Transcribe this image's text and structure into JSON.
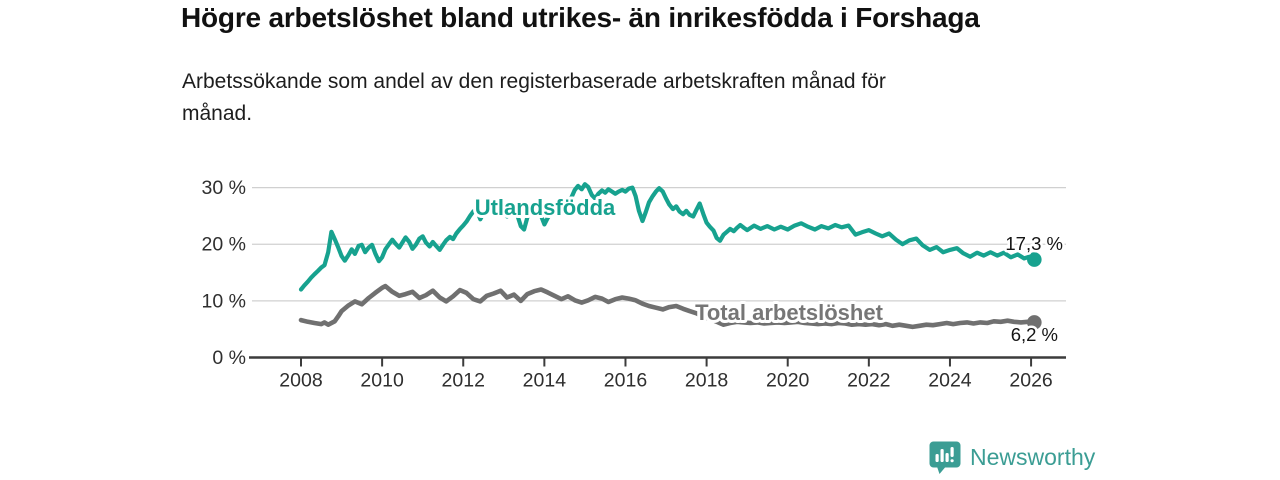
{
  "branding": {
    "wordmark": "Newsworthy",
    "color": "#3B9D94",
    "icon": "newsworthy-chart-bubble-icon"
  },
  "chart_data": {
    "type": "line",
    "title": "Högre arbetslöshet bland utrikes- än inrikesfödda i Forshaga",
    "subtitle": "Arbetssökande som andel av den registerbaserade arbetskraften månad för månad.",
    "subtitle_lines": [
      "Arbetssökande som andel av den registerbaserade arbetskraften månad för",
      "månad."
    ],
    "xlabel": "",
    "ylabel": "",
    "unit": "%",
    "xlim": [
      2007.7,
      2026.9
    ],
    "ylim": [
      0,
      32
    ],
    "grid": true,
    "legend": "inline-labels",
    "x_ticks": [
      {
        "v": 2008,
        "label": "2008"
      },
      {
        "v": 2010,
        "label": "2010"
      },
      {
        "v": 2012,
        "label": "2012"
      },
      {
        "v": 2014,
        "label": "2014"
      },
      {
        "v": 2016,
        "label": "2016"
      },
      {
        "v": 2018,
        "label": "2018"
      },
      {
        "v": 2020,
        "label": "2020"
      },
      {
        "v": 2022,
        "label": "2022"
      },
      {
        "v": 2024,
        "label": "2024"
      },
      {
        "v": 2026,
        "label": "2026"
      }
    ],
    "y_ticks": [
      {
        "v": 0,
        "label": "0 %"
      },
      {
        "v": 10,
        "label": "10 %"
      },
      {
        "v": 20,
        "label": "20 %"
      },
      {
        "v": 30,
        "label": "30 %"
      }
    ],
    "series": [
      {
        "name": "Utlandsfödda",
        "color": "#17A28F",
        "end_label": "17,3 %",
        "last_value": 17.3,
        "points": [
          [
            2008.0,
            12.0
          ],
          [
            2008.08,
            12.7
          ],
          [
            2008.17,
            13.4
          ],
          [
            2008.25,
            14.1
          ],
          [
            2008.33,
            14.7
          ],
          [
            2008.42,
            15.3
          ],
          [
            2008.5,
            15.9
          ],
          [
            2008.58,
            16.3
          ],
          [
            2008.67,
            18.6
          ],
          [
            2008.75,
            22.2
          ],
          [
            2008.83,
            20.9
          ],
          [
            2008.92,
            19.4
          ],
          [
            2009.0,
            17.9
          ],
          [
            2009.08,
            17.1
          ],
          [
            2009.17,
            18.1
          ],
          [
            2009.25,
            19.1
          ],
          [
            2009.33,
            18.3
          ],
          [
            2009.42,
            19.7
          ],
          [
            2009.5,
            19.9
          ],
          [
            2009.58,
            18.6
          ],
          [
            2009.67,
            19.4
          ],
          [
            2009.75,
            19.9
          ],
          [
            2009.83,
            18.4
          ],
          [
            2009.92,
            17.0
          ],
          [
            2010.0,
            17.7
          ],
          [
            2010.08,
            19.1
          ],
          [
            2010.17,
            20.0
          ],
          [
            2010.25,
            20.8
          ],
          [
            2010.33,
            20.1
          ],
          [
            2010.42,
            19.4
          ],
          [
            2010.5,
            20.3
          ],
          [
            2010.58,
            21.2
          ],
          [
            2010.67,
            20.4
          ],
          [
            2010.75,
            19.2
          ],
          [
            2010.83,
            19.9
          ],
          [
            2010.92,
            21.0
          ],
          [
            2011.0,
            21.4
          ],
          [
            2011.08,
            20.3
          ],
          [
            2011.17,
            19.6
          ],
          [
            2011.25,
            20.4
          ],
          [
            2011.33,
            19.7
          ],
          [
            2011.42,
            19.0
          ],
          [
            2011.5,
            19.9
          ],
          [
            2011.58,
            20.7
          ],
          [
            2011.67,
            21.3
          ],
          [
            2011.75,
            20.9
          ],
          [
            2011.83,
            21.9
          ],
          [
            2011.92,
            22.7
          ],
          [
            2012.0,
            23.3
          ],
          [
            2012.08,
            24.0
          ],
          [
            2012.17,
            25.0
          ],
          [
            2012.25,
            25.8
          ],
          [
            2012.33,
            26.1
          ],
          [
            2012.42,
            24.4
          ],
          [
            2012.5,
            25.5
          ],
          [
            2012.58,
            26.3
          ],
          [
            2012.67,
            26.0
          ],
          [
            2012.75,
            25.6
          ],
          [
            2012.83,
            26.2
          ],
          [
            2012.92,
            26.5
          ],
          [
            2013.0,
            25.6
          ],
          [
            2013.08,
            24.9
          ],
          [
            2013.17,
            25.8
          ],
          [
            2013.25,
            26.3
          ],
          [
            2013.33,
            25.2
          ],
          [
            2013.42,
            23.2
          ],
          [
            2013.5,
            22.6
          ],
          [
            2013.58,
            24.7
          ],
          [
            2013.67,
            25.9
          ],
          [
            2013.75,
            26.4
          ],
          [
            2013.83,
            25.8
          ],
          [
            2013.92,
            25.0
          ],
          [
            2014.0,
            23.5
          ],
          [
            2014.08,
            24.6
          ],
          [
            2014.17,
            25.7
          ],
          [
            2014.25,
            26.6
          ],
          [
            2014.33,
            27.0
          ],
          [
            2014.42,
            26.4
          ],
          [
            2014.5,
            26.9
          ],
          [
            2014.58,
            27.5
          ],
          [
            2014.67,
            28.3
          ],
          [
            2014.75,
            29.6
          ],
          [
            2014.83,
            30.3
          ],
          [
            2014.92,
            29.7
          ],
          [
            2015.0,
            30.6
          ],
          [
            2015.08,
            30.1
          ],
          [
            2015.17,
            28.7
          ],
          [
            2015.25,
            28.1
          ],
          [
            2015.33,
            28.9
          ],
          [
            2015.42,
            29.5
          ],
          [
            2015.5,
            29.1
          ],
          [
            2015.58,
            29.7
          ],
          [
            2015.67,
            29.3
          ],
          [
            2015.75,
            28.9
          ],
          [
            2015.83,
            29.3
          ],
          [
            2015.92,
            29.6
          ],
          [
            2016.0,
            29.3
          ],
          [
            2016.08,
            29.8
          ],
          [
            2016.17,
            30.0
          ],
          [
            2016.25,
            28.5
          ],
          [
            2016.33,
            25.9
          ],
          [
            2016.42,
            24.1
          ],
          [
            2016.5,
            25.7
          ],
          [
            2016.58,
            27.4
          ],
          [
            2016.67,
            28.5
          ],
          [
            2016.75,
            29.3
          ],
          [
            2016.83,
            29.9
          ],
          [
            2016.92,
            29.3
          ],
          [
            2017.0,
            28.1
          ],
          [
            2017.08,
            27.0
          ],
          [
            2017.17,
            26.2
          ],
          [
            2017.25,
            26.7
          ],
          [
            2017.33,
            25.8
          ],
          [
            2017.42,
            25.3
          ],
          [
            2017.5,
            25.9
          ],
          [
            2017.58,
            25.2
          ],
          [
            2017.67,
            24.9
          ],
          [
            2017.75,
            26.1
          ],
          [
            2017.83,
            27.2
          ],
          [
            2017.92,
            25.3
          ],
          [
            2018.0,
            23.8
          ],
          [
            2018.08,
            23.1
          ],
          [
            2018.17,
            22.4
          ],
          [
            2018.25,
            21.1
          ],
          [
            2018.33,
            20.6
          ],
          [
            2018.42,
            21.7
          ],
          [
            2018.5,
            22.2
          ],
          [
            2018.58,
            22.7
          ],
          [
            2018.67,
            22.3
          ],
          [
            2018.75,
            22.9
          ],
          [
            2018.83,
            23.4
          ],
          [
            2018.92,
            22.9
          ],
          [
            2019.0,
            22.5
          ],
          [
            2019.17,
            23.3
          ],
          [
            2019.33,
            22.7
          ],
          [
            2019.5,
            23.2
          ],
          [
            2019.67,
            22.6
          ],
          [
            2019.83,
            23.1
          ],
          [
            2020.0,
            22.6
          ],
          [
            2020.17,
            23.3
          ],
          [
            2020.33,
            23.7
          ],
          [
            2020.5,
            23.1
          ],
          [
            2020.67,
            22.6
          ],
          [
            2020.83,
            23.2
          ],
          [
            2021.0,
            22.8
          ],
          [
            2021.17,
            23.4
          ],
          [
            2021.33,
            23.0
          ],
          [
            2021.5,
            23.3
          ],
          [
            2021.67,
            21.7
          ],
          [
            2021.83,
            22.1
          ],
          [
            2022.0,
            22.5
          ],
          [
            2022.17,
            21.9
          ],
          [
            2022.33,
            21.4
          ],
          [
            2022.5,
            21.9
          ],
          [
            2022.67,
            20.8
          ],
          [
            2022.83,
            20.0
          ],
          [
            2023.0,
            20.7
          ],
          [
            2023.17,
            21.0
          ],
          [
            2023.33,
            19.8
          ],
          [
            2023.5,
            19.0
          ],
          [
            2023.67,
            19.5
          ],
          [
            2023.83,
            18.6
          ],
          [
            2024.0,
            19.0
          ],
          [
            2024.17,
            19.3
          ],
          [
            2024.33,
            18.4
          ],
          [
            2024.5,
            17.8
          ],
          [
            2024.67,
            18.5
          ],
          [
            2024.83,
            18.0
          ],
          [
            2025.0,
            18.6
          ],
          [
            2025.17,
            18.0
          ],
          [
            2025.33,
            18.5
          ],
          [
            2025.5,
            17.7
          ],
          [
            2025.67,
            18.2
          ],
          [
            2025.83,
            17.5
          ],
          [
            2026.0,
            17.9
          ],
          [
            2026.08,
            17.3
          ]
        ]
      },
      {
        "name": "Total arbetslöshet",
        "color": "#707070",
        "end_label": "6,2 %",
        "last_value": 6.2,
        "points": [
          [
            2008.0,
            6.6
          ],
          [
            2008.17,
            6.3
          ],
          [
            2008.33,
            6.1
          ],
          [
            2008.5,
            5.9
          ],
          [
            2008.58,
            6.2
          ],
          [
            2008.67,
            5.8
          ],
          [
            2008.83,
            6.4
          ],
          [
            2008.92,
            7.3
          ],
          [
            2009.0,
            8.2
          ],
          [
            2009.17,
            9.2
          ],
          [
            2009.33,
            9.9
          ],
          [
            2009.5,
            9.4
          ],
          [
            2009.67,
            10.5
          ],
          [
            2009.83,
            11.4
          ],
          [
            2010.0,
            12.3
          ],
          [
            2010.08,
            12.6
          ],
          [
            2010.25,
            11.6
          ],
          [
            2010.42,
            10.9
          ],
          [
            2010.58,
            11.2
          ],
          [
            2010.75,
            11.6
          ],
          [
            2010.92,
            10.5
          ],
          [
            2011.08,
            11.0
          ],
          [
            2011.25,
            11.8
          ],
          [
            2011.42,
            10.6
          ],
          [
            2011.58,
            9.9
          ],
          [
            2011.75,
            10.8
          ],
          [
            2011.92,
            11.9
          ],
          [
            2012.08,
            11.4
          ],
          [
            2012.25,
            10.3
          ],
          [
            2012.42,
            9.9
          ],
          [
            2012.58,
            10.9
          ],
          [
            2012.75,
            11.3
          ],
          [
            2012.92,
            11.8
          ],
          [
            2013.08,
            10.6
          ],
          [
            2013.25,
            11.1
          ],
          [
            2013.42,
            10.0
          ],
          [
            2013.58,
            11.2
          ],
          [
            2013.75,
            11.7
          ],
          [
            2013.92,
            12.0
          ],
          [
            2014.08,
            11.5
          ],
          [
            2014.25,
            10.9
          ],
          [
            2014.42,
            10.3
          ],
          [
            2014.58,
            10.8
          ],
          [
            2014.75,
            10.1
          ],
          [
            2014.92,
            9.7
          ],
          [
            2015.08,
            10.1
          ],
          [
            2015.25,
            10.7
          ],
          [
            2015.42,
            10.4
          ],
          [
            2015.58,
            9.8
          ],
          [
            2015.75,
            10.3
          ],
          [
            2015.92,
            10.6
          ],
          [
            2016.08,
            10.4
          ],
          [
            2016.25,
            10.1
          ],
          [
            2016.42,
            9.5
          ],
          [
            2016.58,
            9.1
          ],
          [
            2016.75,
            8.8
          ],
          [
            2016.92,
            8.5
          ],
          [
            2017.08,
            8.9
          ],
          [
            2017.25,
            9.1
          ],
          [
            2017.42,
            8.6
          ],
          [
            2017.58,
            8.2
          ],
          [
            2017.75,
            7.8
          ],
          [
            2017.92,
            7.2
          ],
          [
            2018.08,
            6.8
          ],
          [
            2018.25,
            6.3
          ],
          [
            2018.42,
            5.8
          ],
          [
            2018.58,
            6.1
          ],
          [
            2018.75,
            6.3
          ],
          [
            2018.92,
            6.2
          ],
          [
            2019.08,
            6.1
          ],
          [
            2019.25,
            6.2
          ],
          [
            2019.42,
            6.0
          ],
          [
            2019.58,
            6.1
          ],
          [
            2019.75,
            6.2
          ],
          [
            2019.92,
            6.1
          ],
          [
            2020.08,
            6.2
          ],
          [
            2020.25,
            6.3
          ],
          [
            2020.42,
            6.1
          ],
          [
            2020.58,
            6.0
          ],
          [
            2020.75,
            5.9
          ],
          [
            2020.92,
            6.0
          ],
          [
            2021.08,
            5.9
          ],
          [
            2021.25,
            6.1
          ],
          [
            2021.42,
            6.0
          ],
          [
            2021.58,
            5.8
          ],
          [
            2021.75,
            5.9
          ],
          [
            2021.92,
            5.8
          ],
          [
            2022.08,
            5.9
          ],
          [
            2022.25,
            5.7
          ],
          [
            2022.42,
            5.9
          ],
          [
            2022.58,
            5.6
          ],
          [
            2022.75,
            5.8
          ],
          [
            2022.92,
            5.6
          ],
          [
            2023.08,
            5.4
          ],
          [
            2023.25,
            5.6
          ],
          [
            2023.42,
            5.8
          ],
          [
            2023.58,
            5.7
          ],
          [
            2023.75,
            5.9
          ],
          [
            2023.92,
            6.1
          ],
          [
            2024.08,
            5.9
          ],
          [
            2024.25,
            6.1
          ],
          [
            2024.42,
            6.2
          ],
          [
            2024.58,
            6.0
          ],
          [
            2024.75,
            6.2
          ],
          [
            2024.92,
            6.1
          ],
          [
            2025.08,
            6.4
          ],
          [
            2025.25,
            6.3
          ],
          [
            2025.42,
            6.5
          ],
          [
            2025.58,
            6.3
          ],
          [
            2025.75,
            6.2
          ],
          [
            2025.92,
            6.3
          ],
          [
            2026.08,
            6.2
          ]
        ]
      }
    ]
  }
}
